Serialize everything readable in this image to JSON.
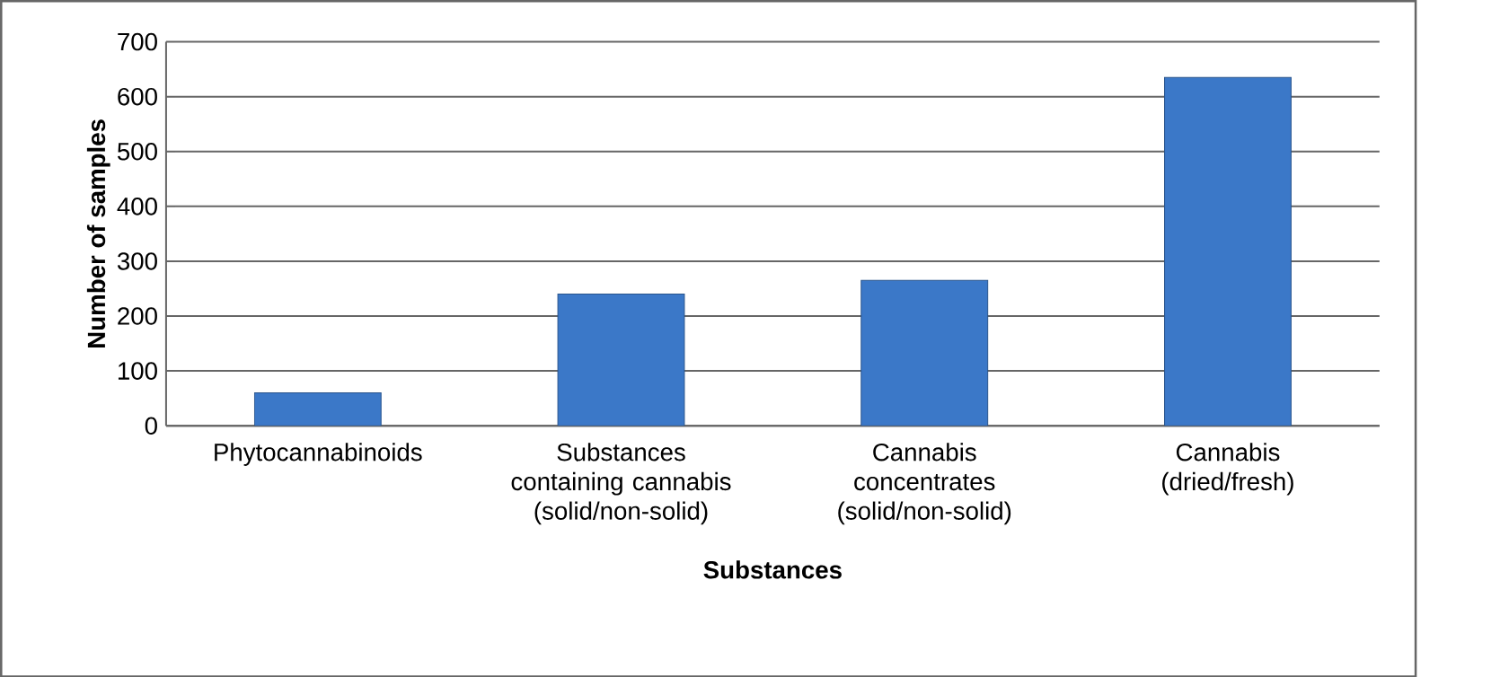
{
  "chart_data": {
    "type": "bar",
    "xlabel": "Substances",
    "ylabel": "Number of samples",
    "categories": [
      "Phytocannabinoids",
      "Substances containing cannabis (solid/non-solid)",
      "Cannabis concentrates (solid/non-solid)",
      "Cannabis (dried/fresh)"
    ],
    "values": [
      60,
      240,
      265,
      635
    ],
    "color": "#3b78c8",
    "ylim": [
      0,
      700
    ],
    "yticks": [
      0,
      100,
      200,
      300,
      400,
      500,
      600,
      700
    ],
    "grid": "y"
  }
}
